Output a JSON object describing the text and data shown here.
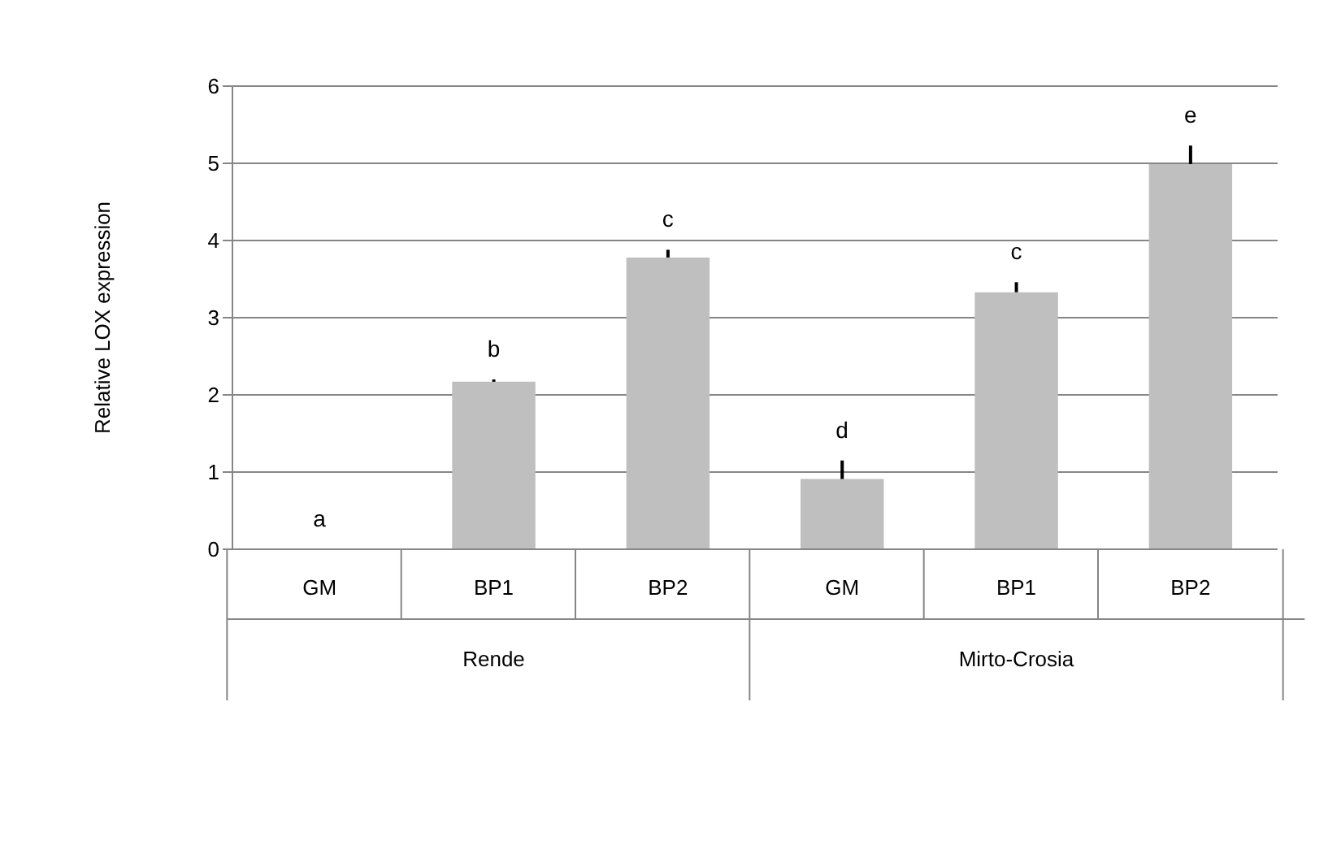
{
  "chart_data": {
    "type": "bar",
    "ylabel": "Relative LOX expression",
    "categories": [
      "GM",
      "BP1",
      "BP2",
      "GM",
      "BP1",
      "BP2"
    ],
    "values": [
      0,
      2.17,
      3.78,
      0.91,
      3.33,
      4.99
    ],
    "errors": [
      null,
      [
        2.17,
        2.2
      ],
      [
        3.78,
        3.88
      ],
      [
        0.91,
        1.15
      ],
      [
        3.33,
        3.46
      ],
      [
        4.99,
        5.23
      ]
    ],
    "color": "#bfbfbf",
    "ylim": [
      0,
      6
    ],
    "yticks": [
      0,
      1,
      2,
      3,
      4,
      5,
      6
    ],
    "grid": "y",
    "annotations": [
      "a",
      "b",
      "c",
      "d",
      "c",
      "e",
      "Rende",
      "Mirto-Crosia"
    ]
  }
}
